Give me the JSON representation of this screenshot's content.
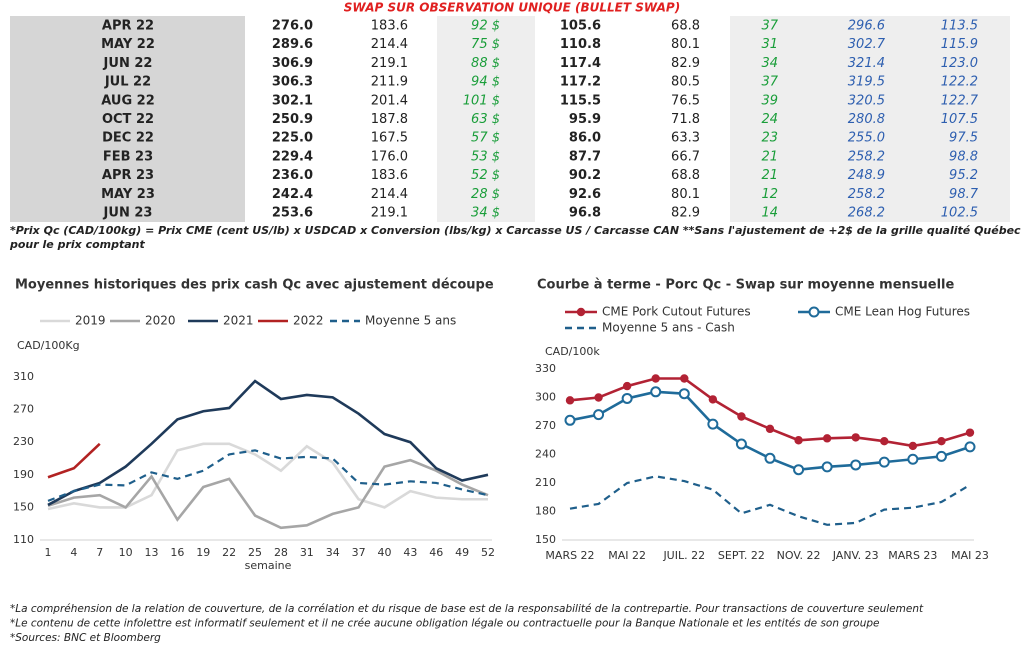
{
  "table": {
    "title": "SWAP SUR OBSERVATION UNIQUE (BULLET SWAP)",
    "rows": [
      [
        "APR 22",
        "276.0",
        "183.6",
        "92 $",
        "105.6",
        "68.8",
        "37",
        "296.6",
        "113.5"
      ],
      [
        "MAY 22",
        "289.6",
        "214.4",
        "75 $",
        "110.8",
        "80.1",
        "31",
        "302.7",
        "115.9"
      ],
      [
        "JUN 22",
        "306.9",
        "219.1",
        "88 $",
        "117.4",
        "82.9",
        "34",
        "321.4",
        "123.0"
      ],
      [
        "JUL 22",
        "306.3",
        "211.9",
        "94 $",
        "117.2",
        "80.5",
        "37",
        "319.5",
        "122.2"
      ],
      [
        "AUG 22",
        "302.1",
        "201.4",
        "101 $",
        "115.5",
        "76.5",
        "39",
        "320.5",
        "122.7"
      ],
      [
        "OCT 22",
        "250.9",
        "187.8",
        "63 $",
        "95.9",
        "71.8",
        "24",
        "280.8",
        "107.5"
      ],
      [
        "DEC 22",
        "225.0",
        "167.5",
        "57 $",
        "86.0",
        "63.3",
        "23",
        "255.0",
        "97.5"
      ],
      [
        "FEB 23",
        "229.4",
        "176.0",
        "53 $",
        "87.7",
        "66.7",
        "21",
        "258.2",
        "98.8"
      ],
      [
        "APR 23",
        "236.0",
        "183.6",
        "52 $",
        "90.2",
        "68.8",
        "21",
        "248.9",
        "95.2"
      ],
      [
        "MAY 23",
        "242.4",
        "214.4",
        "28 $",
        "92.6",
        "80.1",
        "12",
        "258.2",
        "98.7"
      ],
      [
        "JUN 23",
        "253.6",
        "219.1",
        "34 $",
        "96.8",
        "82.9",
        "14",
        "268.2",
        "102.5"
      ]
    ],
    "note": [
      "*Prix Qc (CAD/100kg) = Prix CME (cent US/lb) x USDCAD x Conversion (lbs/kg) x Carcasse US / Carcasse CAN **Sans l'ajustement de +2$ de la grille qualité Québec",
      "pour le prix comptant"
    ]
  },
  "chart_data": [
    {
      "type": "line",
      "title": "Moyennes historiques des prix cash Qc avec ajustement découpe",
      "y_label": "CAD/100Kg",
      "x_label": "semaine",
      "x": [
        1,
        4,
        7,
        10,
        13,
        16,
        19,
        22,
        25,
        28,
        31,
        34,
        37,
        40,
        43,
        46,
        49,
        52
      ],
      "xlim": [
        1,
        52
      ],
      "xticks": [
        1,
        4,
        7,
        10,
        13,
        16,
        19,
        22,
        25,
        28,
        31,
        34,
        37,
        40,
        43,
        46,
        49,
        52
      ],
      "ylim": [
        110,
        310
      ],
      "yticks": [
        110,
        150,
        190,
        230,
        270,
        310
      ],
      "grid": false,
      "series": [
        {
          "name": "2019",
          "color": "#d9d9d9",
          "dash": false,
          "values": [
            148,
            155,
            150,
            150,
            165,
            220,
            228,
            228,
            215,
            195,
            225,
            205,
            160,
            150,
            170,
            162,
            160,
            160
          ]
        },
        {
          "name": "2020",
          "color": "#a6a6a6",
          "dash": false,
          "values": [
            152,
            162,
            165,
            150,
            188,
            135,
            175,
            185,
            140,
            125,
            128,
            142,
            150,
            200,
            208,
            195,
            178,
            165
          ]
        },
        {
          "name": "2021",
          "color": "#1f3a5a",
          "dash": false,
          "values": [
            153,
            170,
            180,
            200,
            228,
            258,
            268,
            272,
            305,
            283,
            288,
            285,
            265,
            240,
            230,
            198,
            183,
            190
          ]
        },
        {
          "name": "2022",
          "color": "#b22222",
          "dash": false,
          "values": [
            187,
            198,
            228,
            null,
            null,
            null,
            null,
            null,
            null,
            null,
            null,
            null,
            null,
            null,
            null,
            null,
            null,
            null
          ]
        },
        {
          "name": "Moyenne 5 ans",
          "color": "#1f5f8b",
          "dash": true,
          "values": [
            158,
            170,
            178,
            177,
            193,
            185,
            195,
            215,
            220,
            210,
            212,
            210,
            180,
            178,
            182,
            180,
            172,
            165
          ]
        }
      ]
    },
    {
      "type": "line",
      "title": "Courbe à terme - Porc Qc - Swap sur moyenne mensuelle",
      "y_label": "CAD/100k",
      "categories": [
        "MARS 22",
        null,
        "MAI 22",
        null,
        "JUIL. 22",
        null,
        "SEPT. 22",
        null,
        "NOV. 22",
        null,
        "JANV. 23",
        null,
        "MARS 23",
        null,
        "MAI 23"
      ],
      "ylim": [
        150,
        330
      ],
      "yticks": [
        150,
        180,
        210,
        240,
        270,
        300,
        330
      ],
      "grid": false,
      "series": [
        {
          "name": "CME Pork Cutout Futures",
          "color": "#b22234",
          "dash": false,
          "marker": "filled",
          "values": [
            297,
            300,
            312,
            320,
            320,
            298,
            280,
            267,
            255,
            257,
            258,
            254,
            249,
            254,
            263
          ]
        },
        {
          "name": "CME Lean Hog Futures",
          "color": "#1f6b9a",
          "dash": false,
          "marker": "open",
          "values": [
            276,
            282,
            299,
            306,
            304,
            272,
            251,
            236,
            224,
            227,
            229,
            232,
            235,
            238,
            248
          ]
        },
        {
          "name": "Moyenne 5 ans - Cash",
          "color": "#1f5f8b",
          "dash": true,
          "values": [
            183,
            188,
            210,
            217,
            212,
            203,
            178,
            187,
            175,
            166,
            168,
            182,
            184,
            190,
            208
          ]
        }
      ]
    }
  ],
  "footer": [
    "*La compréhension de la relation de couverture, de la corrélation et du risque de base est de la responsabilité de la contrepartie. Pour transactions de couverture seulement",
    "*Le contenu de cette infolettre est informatif seulement et il ne crée aucune obligation légale ou contractuelle pour la Banque Nationale et les entités de son groupe",
    "*Sources: BNC et Bloomberg"
  ]
}
